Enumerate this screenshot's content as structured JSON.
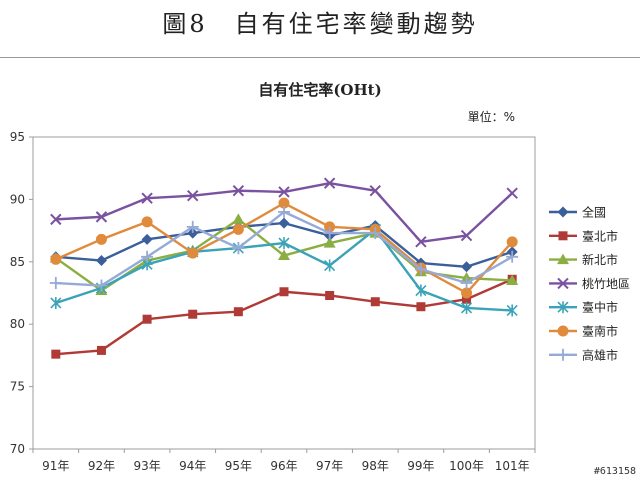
{
  "figure_title": "圖8　自有住宅率變動趨勢",
  "watermark": "#613158",
  "chart_data": {
    "type": "line",
    "title": "自有住宅率(OHt)",
    "unit": "單位：%",
    "categories": [
      "91年",
      "92年",
      "93年",
      "94年",
      "95年",
      "96年",
      "97年",
      "98年",
      "99年",
      "100年",
      "101年"
    ],
    "ylim": [
      70,
      95
    ],
    "yticks": [
      70,
      75,
      80,
      85,
      90,
      95
    ],
    "grid": false,
    "legend_position": "right",
    "series": [
      {
        "name": "全國",
        "color": "#3B5F9A",
        "marker": "diamond",
        "values": [
          85.4,
          85.1,
          86.8,
          87.3,
          87.8,
          88.1,
          87.1,
          87.9,
          84.9,
          84.6,
          85.8
        ]
      },
      {
        "name": "臺北市",
        "color": "#B03A35",
        "marker": "square",
        "values": [
          77.6,
          77.9,
          80.4,
          80.8,
          81.0,
          82.6,
          82.3,
          81.8,
          81.4,
          82.0,
          83.6
        ]
      },
      {
        "name": "新北市",
        "color": "#8AAE42",
        "marker": "triangle",
        "values": [
          85.3,
          82.7,
          85.1,
          85.9,
          88.4,
          85.5,
          86.5,
          87.3,
          84.2,
          83.7,
          83.5
        ]
      },
      {
        "name": "桃竹地區",
        "color": "#7A52A0",
        "marker": "x",
        "values": [
          88.4,
          88.6,
          90.1,
          90.3,
          90.7,
          90.6,
          91.3,
          90.7,
          86.6,
          87.1,
          90.5
        ]
      },
      {
        "name": "臺中市",
        "color": "#3AA3B8",
        "marker": "star",
        "values": [
          81.7,
          82.9,
          84.8,
          85.8,
          86.1,
          86.5,
          84.7,
          87.6,
          82.7,
          81.3,
          81.1
        ]
      },
      {
        "name": "臺南市",
        "color": "#E08A3C",
        "marker": "circle",
        "values": [
          85.2,
          86.8,
          88.2,
          85.7,
          87.6,
          89.7,
          87.8,
          87.6,
          84.5,
          82.5,
          86.6
        ]
      },
      {
        "name": "高雄市",
        "color": "#96AAD6",
        "marker": "plus",
        "values": [
          83.3,
          83.1,
          85.4,
          87.8,
          86.1,
          89.0,
          87.3,
          87.3,
          84.4,
          83.3,
          85.4
        ]
      }
    ]
  }
}
